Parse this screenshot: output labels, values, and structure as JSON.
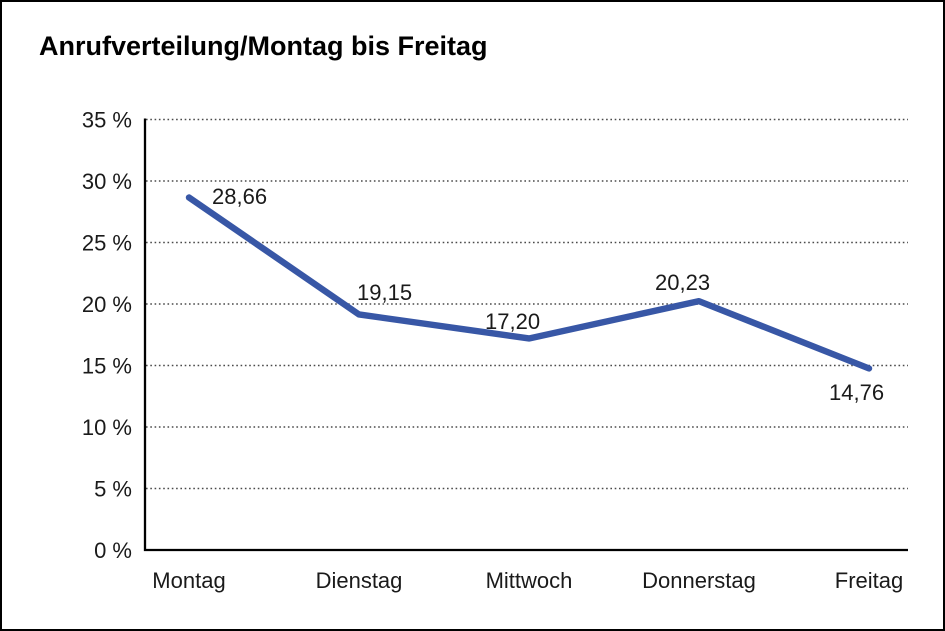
{
  "chart_data": {
    "type": "line",
    "title": "Anrufverteilung/Montag bis Freitag",
    "categories": [
      "Montag",
      "Dienstag",
      "Mittwoch",
      "Donnerstag",
      "Freitag"
    ],
    "values": [
      28.66,
      19.15,
      17.2,
      20.23,
      14.76
    ],
    "point_labels": [
      "28,66",
      "19,15",
      "17,20",
      "20,23",
      "14,76"
    ],
    "y_ticks": [
      "0 %",
      "5 %",
      "10 %",
      "15 %",
      "20 %",
      "25 %",
      "30 %",
      "35 %"
    ],
    "ylim": [
      0,
      35
    ],
    "y_tick_step": 5,
    "xlabel": "",
    "ylabel": "",
    "legend": "none",
    "grid": "horizontal-dotted",
    "decimal_separator": ","
  },
  "colors": {
    "line": "#3857a6",
    "grid_dots": "#4a4a4a",
    "axis": "#000000",
    "text": "#1a1a1a",
    "background": "#ffffff",
    "border": "#000000"
  }
}
